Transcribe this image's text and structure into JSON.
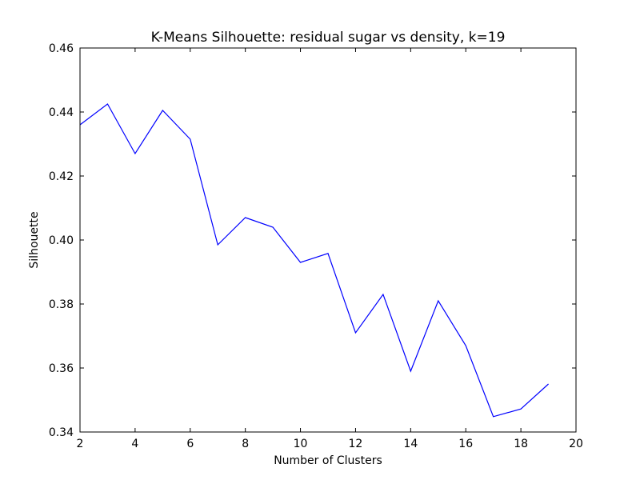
{
  "chart_data": {
    "type": "line",
    "title": "K-Means Silhouette: residual sugar vs density, k=19",
    "xlabel": "Number of Clusters",
    "ylabel": "Silhouette",
    "xlim": [
      2,
      20
    ],
    "ylim": [
      0.34,
      0.46
    ],
    "xticks": [
      2,
      4,
      6,
      8,
      10,
      12,
      14,
      16,
      18,
      20
    ],
    "yticks": [
      0.34,
      0.36,
      0.38,
      0.4,
      0.42,
      0.44,
      0.46
    ],
    "xtick_labels": [
      "2",
      "4",
      "6",
      "8",
      "10",
      "12",
      "14",
      "16",
      "18",
      "20"
    ],
    "ytick_labels": [
      "0.34",
      "0.36",
      "0.38",
      "0.40",
      "0.42",
      "0.44",
      "0.46"
    ],
    "grid": false,
    "line_color": "#0000ff",
    "series": [
      {
        "x": [
          2,
          3,
          4,
          5,
          6,
          7,
          8,
          9,
          10,
          11,
          12,
          13,
          14,
          15,
          16,
          17,
          18,
          19
        ],
        "values": [
          0.436,
          0.4425,
          0.427,
          0.4405,
          0.4315,
          0.3985,
          0.407,
          0.404,
          0.393,
          0.3958,
          0.371,
          0.383,
          0.359,
          0.381,
          0.367,
          0.3448,
          0.3472,
          0.355
        ]
      }
    ]
  }
}
